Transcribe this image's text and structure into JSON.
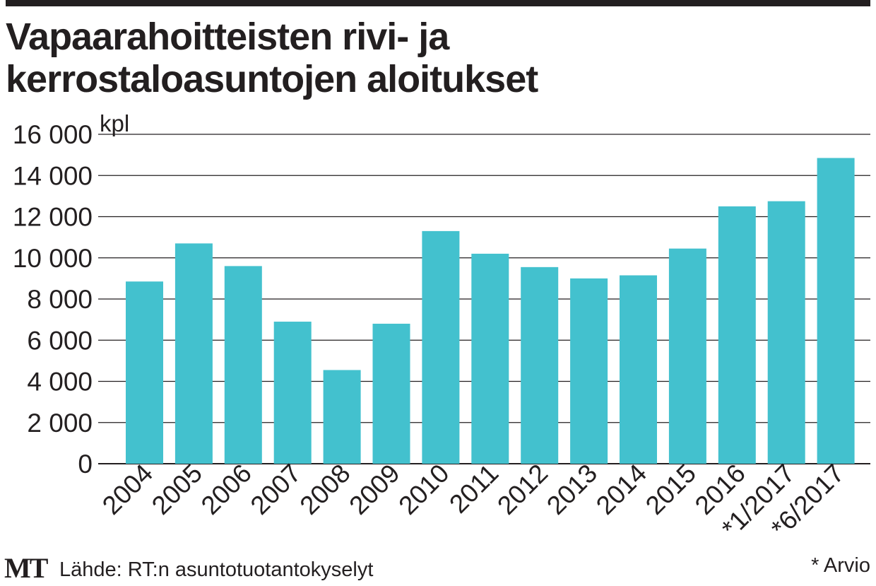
{
  "title_lines": [
    "Vapaarahoitteisten rivi- ja",
    "kerrostaloasuntojen aloitukset"
  ],
  "brand": "MT",
  "source": "Lähde: RT:n asuntotuotantokyselyt",
  "footnote": "* Arvio",
  "colors": {
    "bar": "#43c1ce",
    "grid": "#231f20",
    "text": "#231f20"
  },
  "chart_data": {
    "type": "bar",
    "title": "Vapaarahoitteisten rivi- ja kerrostaloasuntojen aloitukset",
    "ylabel": "kpl",
    "xlabel": "",
    "ylim": [
      0,
      16000
    ],
    "yticks": [
      0,
      2000,
      4000,
      6000,
      8000,
      10000,
      12000,
      14000,
      16000
    ],
    "ytick_labels": [
      "0",
      "2 000",
      "4 000",
      "6 000",
      "8 000",
      "10 000",
      "12 000",
      "14 000",
      "16 000"
    ],
    "grid": true,
    "categories": [
      "2004",
      "2005",
      "2006",
      "2007",
      "2008",
      "2009",
      "2010",
      "2011",
      "2012",
      "2013",
      "2014",
      "2015",
      "2016",
      "*1/2017",
      "*6/2017"
    ],
    "values": [
      8850,
      10700,
      9600,
      6900,
      4550,
      6800,
      11300,
      10200,
      9550,
      9000,
      9150,
      10450,
      12500,
      12750,
      14850
    ]
  }
}
